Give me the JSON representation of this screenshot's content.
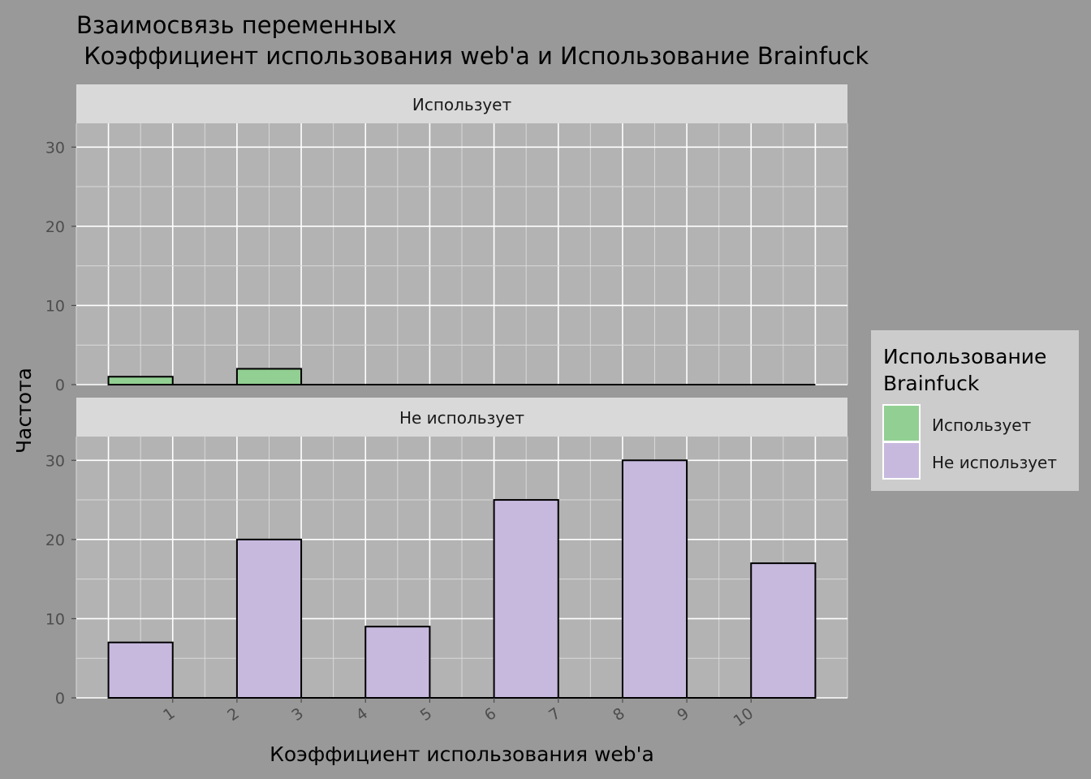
{
  "title": {
    "line1": "Взаимосвязь переменных",
    "line2": " Коэффициент использования web'a и Использование Brainfuck"
  },
  "colors": {
    "background": "#999999",
    "panel": "#b3b3b3",
    "strip": "#d9d9d9",
    "legend_bg": "#cccccc",
    "uses": "#92cf92",
    "not_uses": "#c7b9de"
  },
  "chart_data": {
    "type": "bar",
    "xlabel": "Коэффициент использования web'a",
    "ylabel": "Частота",
    "x_ticks": [
      "1",
      "2",
      "3",
      "4",
      "5",
      "6",
      "7",
      "8",
      "9",
      "10"
    ],
    "x_range": [
      -0.5,
      11.5
    ],
    "ylim": [
      0,
      33
    ],
    "y_ticks": [
      0,
      10,
      20,
      30
    ],
    "grid": true,
    "bins": [
      {
        "xmin": 0,
        "xmax": 1
      },
      {
        "xmin": 1,
        "xmax": 2
      },
      {
        "xmin": 2,
        "xmax": 3
      },
      {
        "xmin": 3,
        "xmax": 4
      },
      {
        "xmin": 4,
        "xmax": 5
      },
      {
        "xmin": 5,
        "xmax": 6
      },
      {
        "xmin": 6,
        "xmax": 7
      },
      {
        "xmin": 7,
        "xmax": 8
      },
      {
        "xmin": 8,
        "xmax": 9
      },
      {
        "xmin": 9,
        "xmax": 10
      },
      {
        "xmin": 10,
        "xmax": 11
      }
    ],
    "facets": [
      {
        "label": "Использует",
        "key": "uses",
        "values": [
          1,
          0,
          2,
          0,
          0,
          0,
          0,
          0,
          0,
          0,
          0
        ]
      },
      {
        "label": "Не использует",
        "key": "not_uses",
        "values": [
          7,
          0,
          20,
          0,
          9,
          0,
          25,
          0,
          30,
          0,
          17
        ]
      }
    ],
    "legend": {
      "title_line1": "Использование",
      "title_line2": "Brainfuck",
      "placement": "right",
      "entries": [
        {
          "label": "Использует",
          "key": "uses"
        },
        {
          "label": "Не использует",
          "key": "not_uses"
        }
      ]
    }
  }
}
